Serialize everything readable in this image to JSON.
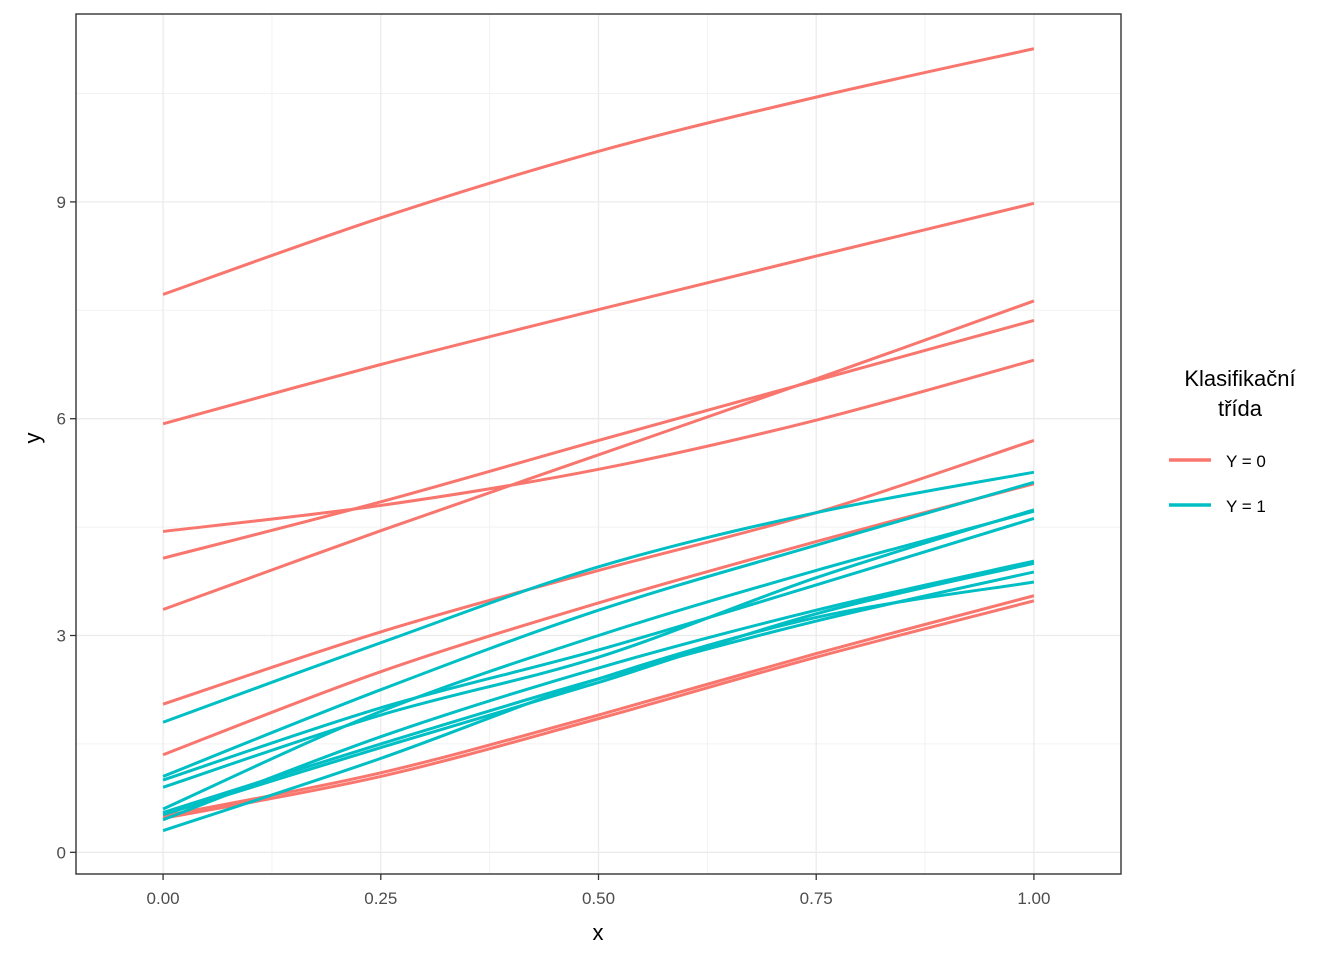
{
  "chart_data": {
    "type": "line",
    "xlabel": "x",
    "ylabel": "y",
    "xlim": [
      -0.1,
      1.1
    ],
    "ylim": [
      -0.3,
      11.6
    ],
    "x_ticks": [
      0,
      0.25,
      0.5,
      0.75,
      1
    ],
    "x_tick_labels": [
      "0.00",
      "0.25",
      "0.50",
      "0.75",
      "1.00"
    ],
    "y_ticks": [
      0,
      3,
      6,
      9
    ],
    "y_tick_labels": [
      "0",
      "3",
      "6",
      "9"
    ],
    "grid": true,
    "legend": {
      "title_lines": [
        "Klasifikační",
        "třída"
      ],
      "position": "right",
      "entries": [
        {
          "label": "Y = 0",
          "color": "#F8766D"
        },
        {
          "label": "Y = 1",
          "color": "#00BFC4"
        }
      ]
    },
    "x": [
      0,
      0.25,
      0.5,
      0.75,
      1
    ],
    "series": [
      {
        "group": "Y = 0",
        "color": "#F8766D",
        "values": [
          7.72,
          8.78,
          9.7,
          10.45,
          11.12
        ]
      },
      {
        "group": "Y = 0",
        "color": "#F8766D",
        "values": [
          5.93,
          6.75,
          7.51,
          8.25,
          8.98
        ]
      },
      {
        "group": "Y = 0",
        "color": "#F8766D",
        "values": [
          4.07,
          4.85,
          5.7,
          6.53,
          7.36
        ]
      },
      {
        "group": "Y = 0",
        "color": "#F8766D",
        "values": [
          4.44,
          4.8,
          5.3,
          5.98,
          6.81
        ]
      },
      {
        "group": "Y = 0",
        "color": "#F8766D",
        "values": [
          3.36,
          4.45,
          5.5,
          6.55,
          7.63
        ]
      },
      {
        "group": "Y = 0",
        "color": "#F8766D",
        "values": [
          2.05,
          3.05,
          3.9,
          4.7,
          5.7
        ]
      },
      {
        "group": "Y = 0",
        "color": "#F8766D",
        "values": [
          1.35,
          2.5,
          3.45,
          4.3,
          5.1
        ]
      },
      {
        "group": "Y = 0",
        "color": "#F8766D",
        "values": [
          0.5,
          1.1,
          1.9,
          2.75,
          3.55
        ]
      },
      {
        "group": "Y = 0",
        "color": "#F8766D",
        "values": [
          0.47,
          1.05,
          1.85,
          2.7,
          3.48
        ]
      },
      {
        "group": "Y = 1",
        "color": "#00BFC4",
        "values": [
          1.8,
          2.9,
          3.95,
          4.7,
          5.26
        ]
      },
      {
        "group": "Y = 1",
        "color": "#00BFC4",
        "values": [
          1.05,
          2.25,
          3.35,
          4.25,
          5.12
        ]
      },
      {
        "group": "Y = 1",
        "color": "#00BFC4",
        "values": [
          0.6,
          1.95,
          3.0,
          3.9,
          4.72
        ]
      },
      {
        "group": "Y = 1",
        "color": "#00BFC4",
        "values": [
          0.9,
          1.9,
          2.7,
          3.8,
          4.74
        ]
      },
      {
        "group": "Y = 1",
        "color": "#00BFC4",
        "values": [
          1.0,
          2.0,
          2.8,
          3.7,
          4.62
        ]
      },
      {
        "group": "Y = 1",
        "color": "#00BFC4",
        "values": [
          0.45,
          1.6,
          2.55,
          3.35,
          4.03
        ]
      },
      {
        "group": "Y = 1",
        "color": "#00BFC4",
        "values": [
          0.55,
          1.5,
          2.4,
          3.2,
          3.88
        ]
      },
      {
        "group": "Y = 1",
        "color": "#00BFC4",
        "values": [
          0.3,
          1.3,
          2.4,
          3.25,
          3.74
        ]
      },
      {
        "group": "Y = 1",
        "color": "#00BFC4",
        "values": [
          0.52,
          1.45,
          2.35,
          3.3,
          4.0
        ]
      }
    ]
  }
}
